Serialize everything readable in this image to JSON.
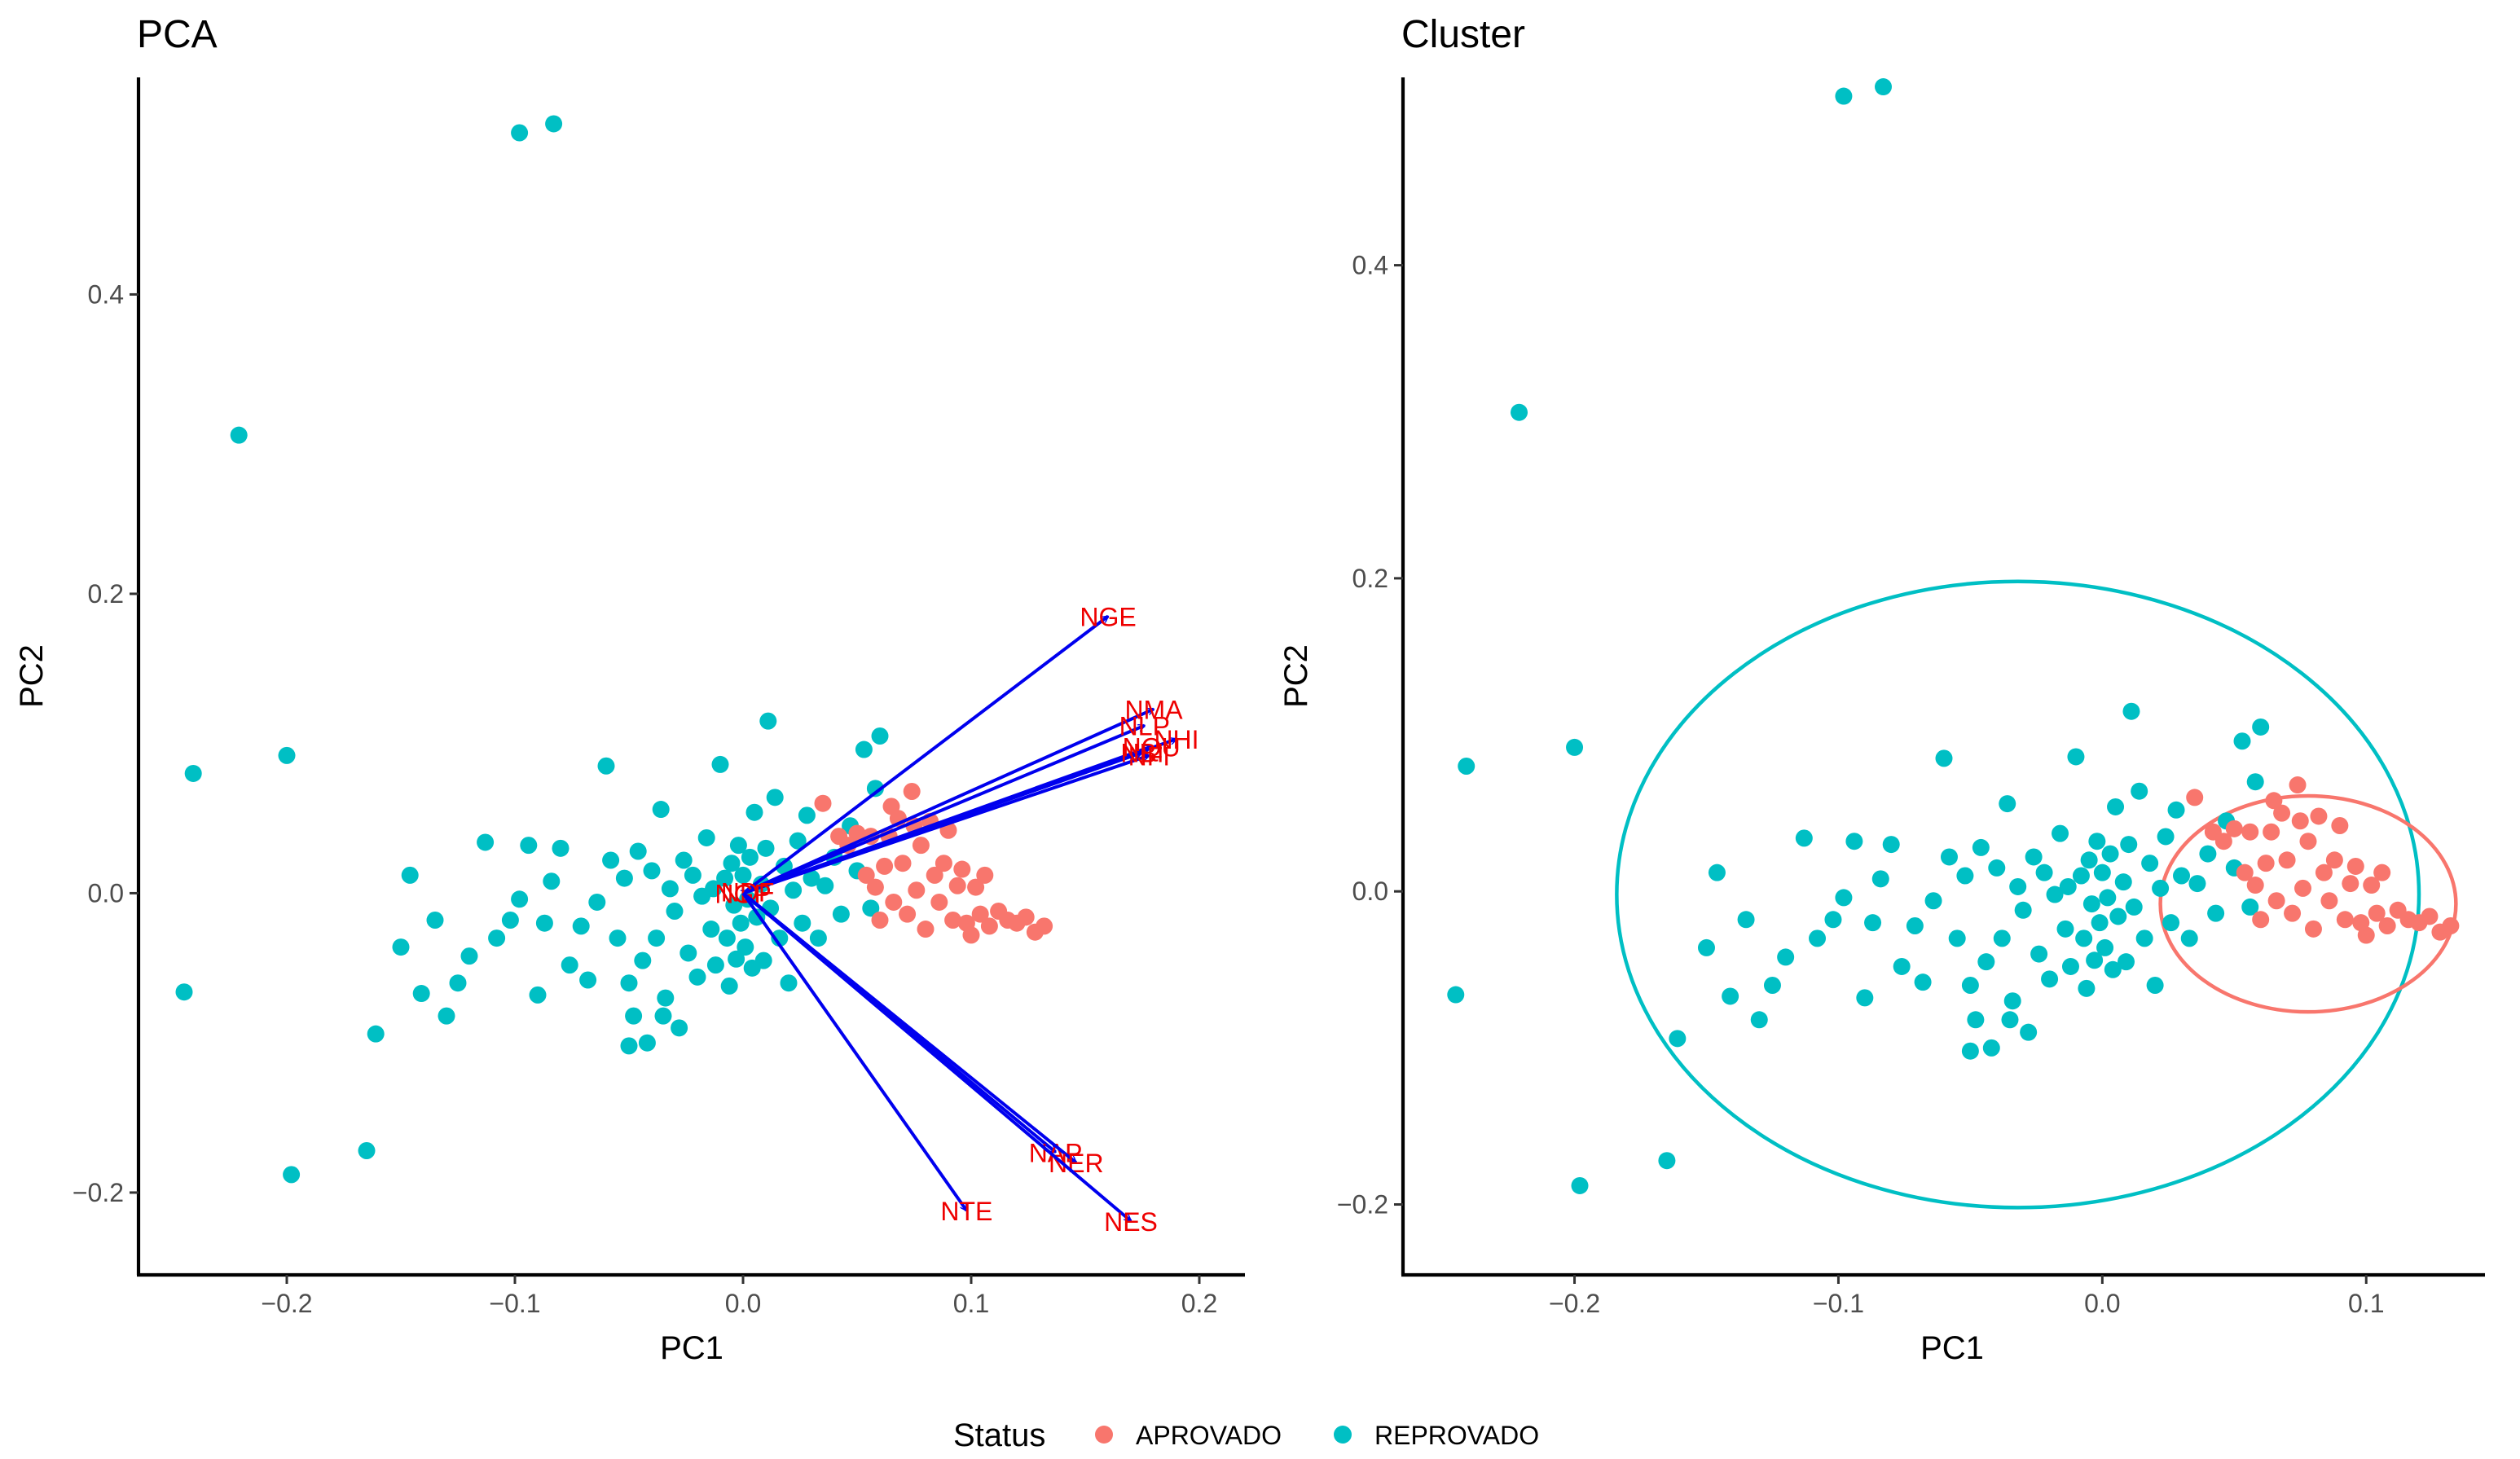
{
  "colors": {
    "APROVADO": "#F8766D",
    "REPROVADO": "#00BFC4",
    "vector": "#0000EE",
    "vector_label": "#EE0000"
  },
  "legend": {
    "title": "Status",
    "items": [
      {
        "key": "APROVADO",
        "label": "APROVADO"
      },
      {
        "key": "REPROVADO",
        "label": "REPROVADO"
      }
    ]
  },
  "chart_data": [
    {
      "panel": "PCA",
      "type": "scatter",
      "title": "PCA",
      "xlabel": "PC1",
      "ylabel": "PC2",
      "xlim": [
        -0.265,
        0.22
      ],
      "ylim": [
        -0.255,
        0.545
      ],
      "xticks": [
        -0.2,
        -0.1,
        0.0,
        0.1,
        0.2
      ],
      "xtick_labels": [
        "−0.2",
        "−0.1",
        "0.0",
        "0.1",
        "0.2"
      ],
      "yticks": [
        -0.2,
        0.0,
        0.2,
        0.4
      ],
      "ytick_labels": [
        "−0.2",
        "0.0",
        "0.2",
        "0.4"
      ],
      "grid": false,
      "vectors": [
        {
          "label": "NGE",
          "x": 0.16,
          "y": 0.185
        },
        {
          "label": "NMA",
          "x": 0.18,
          "y": 0.123
        },
        {
          "label": "NLP",
          "x": 0.176,
          "y": 0.112
        },
        {
          "label": "NHI",
          "x": 0.19,
          "y": 0.103
        },
        {
          "label": "NQU",
          "x": 0.179,
          "y": 0.098
        },
        {
          "label": "NFI",
          "x": 0.178,
          "y": 0.092
        },
        {
          "label": "NBI",
          "x": 0.175,
          "y": 0.094
        },
        {
          "label": "NGP",
          "x": 0.0,
          "y": 0.0
        },
        {
          "label": "NDF",
          "x": 0.002,
          "y": 0.001
        },
        {
          "label": "NAP",
          "x": 0.137,
          "y": -0.173
        },
        {
          "label": "NER",
          "x": 0.146,
          "y": -0.18
        },
        {
          "label": "NES",
          "x": 0.17,
          "y": -0.219
        },
        {
          "label": "NTE",
          "x": 0.098,
          "y": -0.212
        }
      ]
    },
    {
      "panel": "Cluster",
      "type": "scatter",
      "title": "Cluster",
      "xlabel": "PC1",
      "ylabel": "PC2",
      "xlim": [
        -0.265,
        0.145
      ],
      "ylim": [
        -0.245,
        0.52
      ],
      "xticks": [
        -0.2,
        -0.1,
        0.0,
        0.1
      ],
      "xtick_labels": [
        "−0.2",
        "−0.1",
        "0.0",
        "0.1"
      ],
      "yticks": [
        -0.2,
        0.0,
        0.2,
        0.4
      ],
      "ytick_labels": [
        "−0.2",
        "0.0",
        "0.2",
        "0.4"
      ],
      "grid": false,
      "ellipses": [
        {
          "group": "REPROVADO",
          "cx": -0.032,
          "cy": -0.002,
          "rx": 0.152,
          "ry": 0.2
        },
        {
          "group": "APROVADO",
          "cx": 0.078,
          "cy": -0.008,
          "rx": 0.056,
          "ry": 0.069
        }
      ]
    }
  ],
  "points": {
    "REPROVADO": [
      [
        -0.098,
        0.508
      ],
      [
        -0.083,
        0.514
      ],
      [
        -0.221,
        0.306
      ],
      [
        -0.2,
        0.092
      ],
      [
        -0.241,
        0.08
      ],
      [
        -0.245,
        -0.066
      ],
      [
        -0.198,
        -0.188
      ],
      [
        -0.165,
        -0.172
      ],
      [
        -0.161,
        -0.094
      ],
      [
        -0.146,
        0.012
      ],
      [
        -0.15,
        -0.036
      ],
      [
        -0.141,
        -0.067
      ],
      [
        -0.135,
        -0.018
      ],
      [
        -0.13,
        -0.082
      ],
      [
        -0.125,
        -0.06
      ],
      [
        -0.12,
        -0.042
      ],
      [
        -0.113,
        0.034
      ],
      [
        -0.108,
        -0.03
      ],
      [
        -0.102,
        -0.018
      ],
      [
        -0.098,
        -0.004
      ],
      [
        -0.094,
        0.032
      ],
      [
        -0.09,
        -0.068
      ],
      [
        -0.087,
        -0.02
      ],
      [
        -0.084,
        0.008
      ],
      [
        -0.08,
        0.03
      ],
      [
        -0.076,
        -0.048
      ],
      [
        -0.071,
        -0.022
      ],
      [
        -0.068,
        -0.058
      ],
      [
        -0.064,
        -0.006
      ],
      [
        -0.06,
        0.085
      ],
      [
        -0.058,
        0.022
      ],
      [
        -0.055,
        -0.03
      ],
      [
        -0.052,
        0.01
      ],
      [
        -0.05,
        -0.06
      ],
      [
        -0.048,
        -0.082
      ],
      [
        -0.046,
        0.028
      ],
      [
        -0.044,
        -0.045
      ],
      [
        -0.042,
        -0.1
      ],
      [
        -0.04,
        0.015
      ],
      [
        -0.038,
        -0.03
      ],
      [
        -0.036,
        0.056
      ],
      [
        -0.034,
        -0.07
      ],
      [
        -0.032,
        0.003
      ],
      [
        -0.03,
        -0.012
      ],
      [
        -0.028,
        -0.09
      ],
      [
        -0.026,
        0.022
      ],
      [
        -0.024,
        -0.04
      ],
      [
        -0.022,
        0.012
      ],
      [
        -0.02,
        -0.056
      ],
      [
        -0.018,
        -0.002
      ],
      [
        -0.016,
        0.037
      ],
      [
        -0.014,
        -0.024
      ],
      [
        -0.013,
        0.003
      ],
      [
        -0.012,
        -0.048
      ],
      [
        -0.01,
        0.086
      ],
      [
        -0.008,
        0.01
      ],
      [
        -0.007,
        -0.03
      ],
      [
        -0.006,
        -0.062
      ],
      [
        -0.005,
        0.02
      ],
      [
        -0.004,
        -0.008
      ],
      [
        -0.003,
        -0.044
      ],
      [
        -0.002,
        0.032
      ],
      [
        -0.001,
        -0.02
      ],
      [
        0.0,
        0.012
      ],
      [
        0.001,
        -0.036
      ],
      [
        0.002,
        -0.004
      ],
      [
        0.003,
        0.024
      ],
      [
        0.004,
        -0.05
      ],
      [
        0.005,
        0.054
      ],
      [
        0.006,
        -0.016
      ],
      [
        0.008,
        0.006
      ],
      [
        0.009,
        -0.045
      ],
      [
        0.01,
        0.03
      ],
      [
        0.012,
        -0.01
      ],
      [
        0.014,
        0.064
      ],
      [
        0.016,
        -0.03
      ],
      [
        0.018,
        0.018
      ],
      [
        0.02,
        -0.06
      ],
      [
        0.022,
        0.002
      ],
      [
        0.024,
        0.035
      ],
      [
        0.026,
        -0.02
      ],
      [
        0.028,
        0.052
      ],
      [
        0.03,
        0.01
      ],
      [
        0.033,
        -0.03
      ],
      [
        0.036,
        0.005
      ],
      [
        0.04,
        0.024
      ],
      [
        0.043,
        -0.014
      ],
      [
        0.047,
        0.045
      ],
      [
        0.05,
        0.015
      ],
      [
        0.053,
        0.096
      ],
      [
        0.056,
        -0.01
      ],
      [
        0.058,
        0.07
      ],
      [
        0.011,
        0.115
      ],
      [
        0.06,
        0.105
      ],
      [
        -0.05,
        -0.102
      ],
      [
        -0.035,
        -0.082
      ]
    ],
    "APROVADO": [
      [
        0.035,
        0.06
      ],
      [
        0.042,
        0.038
      ],
      [
        0.046,
        0.032
      ],
      [
        0.05,
        0.04
      ],
      [
        0.054,
        0.012
      ],
      [
        0.056,
        0.038
      ],
      [
        0.058,
        0.004
      ],
      [
        0.06,
        -0.018
      ],
      [
        0.062,
        0.018
      ],
      [
        0.064,
        0.038
      ],
      [
        0.066,
        -0.006
      ],
      [
        0.068,
        0.05
      ],
      [
        0.07,
        0.02
      ],
      [
        0.072,
        -0.014
      ],
      [
        0.074,
        0.068
      ],
      [
        0.076,
        0.002
      ],
      [
        0.078,
        0.032
      ],
      [
        0.08,
        -0.024
      ],
      [
        0.082,
        0.048
      ],
      [
        0.084,
        0.012
      ],
      [
        0.086,
        -0.006
      ],
      [
        0.088,
        0.02
      ],
      [
        0.09,
        0.042
      ],
      [
        0.092,
        -0.018
      ],
      [
        0.094,
        0.005
      ],
      [
        0.096,
        0.016
      ],
      [
        0.098,
        -0.02
      ],
      [
        0.1,
        -0.028
      ],
      [
        0.102,
        0.004
      ],
      [
        0.104,
        -0.014
      ],
      [
        0.106,
        0.012
      ],
      [
        0.108,
        -0.022
      ],
      [
        0.112,
        -0.012
      ],
      [
        0.116,
        -0.018
      ],
      [
        0.12,
        -0.02
      ],
      [
        0.124,
        -0.016
      ],
      [
        0.128,
        -0.026
      ],
      [
        0.132,
        -0.022
      ],
      [
        0.065,
        0.058
      ],
      [
        0.075,
        0.045
      ]
    ]
  }
}
